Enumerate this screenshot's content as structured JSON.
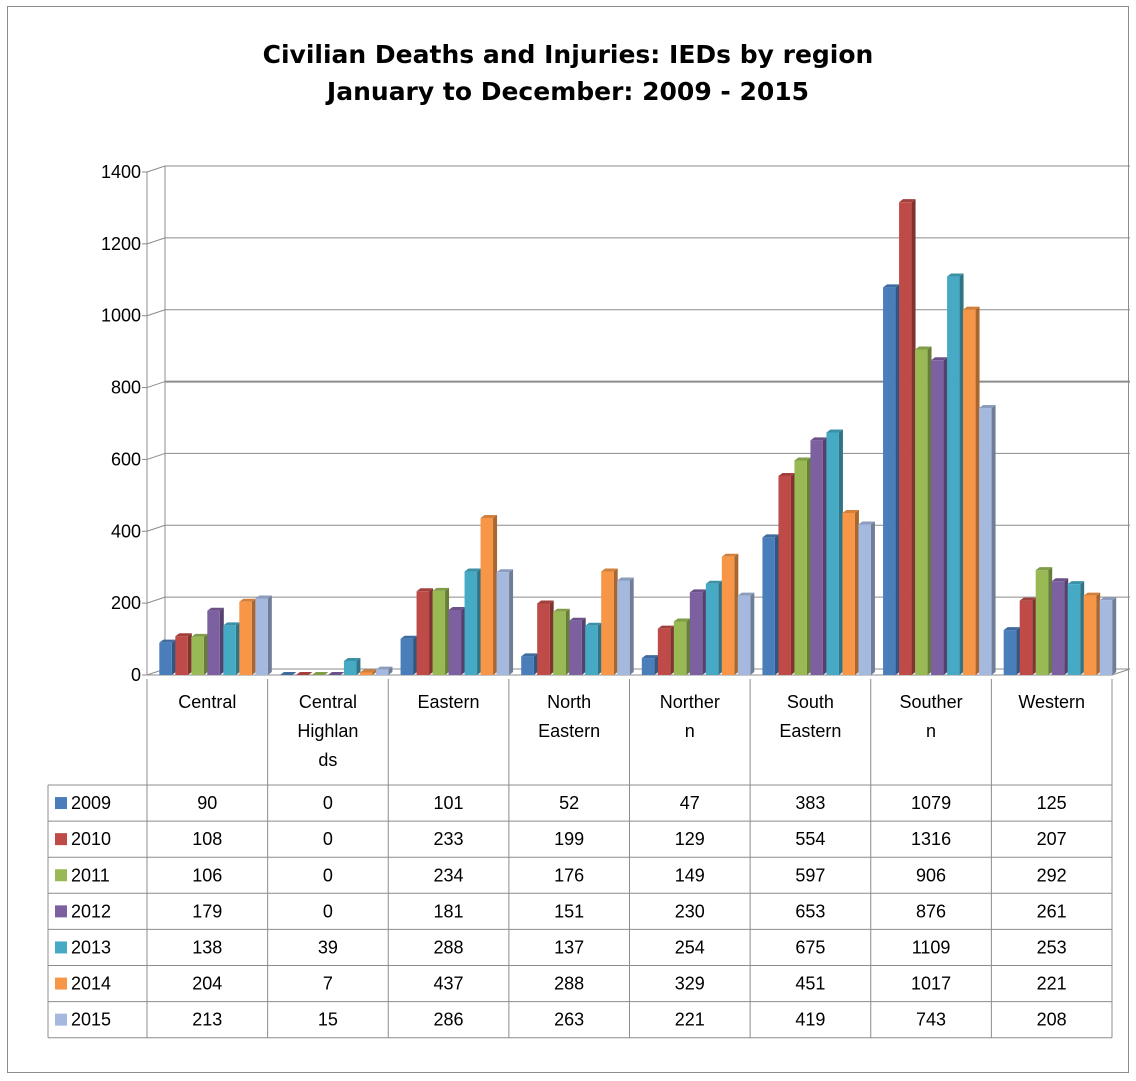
{
  "chart_data": {
    "type": "bar",
    "title": "Civilian Deaths and Injuries: IEDs by region",
    "subtitle": "January to December: 2009 - 2015",
    "xlabel": "",
    "ylabel": "",
    "ylim": [
      0,
      1400
    ],
    "yticks": [
      0,
      200,
      400,
      600,
      800,
      1000,
      1200,
      1400
    ],
    "grid": true,
    "legend": "data-table",
    "categories": [
      [
        "Central"
      ],
      [
        "Central",
        "Highlan",
        "ds"
      ],
      [
        "Eastern"
      ],
      [
        "North",
        "Eastern"
      ],
      [
        "Norther",
        "n"
      ],
      [
        "South",
        "Eastern"
      ],
      [
        "Souther",
        "n"
      ],
      [
        "Western"
      ]
    ],
    "series": [
      {
        "name": "2009",
        "color": "#4a7ebb",
        "values": [
          90,
          0,
          101,
          52,
          47,
          383,
          1079,
          125
        ]
      },
      {
        "name": "2010",
        "color": "#be4b48",
        "values": [
          108,
          0,
          233,
          199,
          129,
          554,
          1316,
          207
        ]
      },
      {
        "name": "2011",
        "color": "#98b954",
        "values": [
          106,
          0,
          234,
          176,
          149,
          597,
          906,
          292
        ]
      },
      {
        "name": "2012",
        "color": "#7d60a0",
        "values": [
          179,
          0,
          181,
          151,
          230,
          653,
          876,
          261
        ]
      },
      {
        "name": "2013",
        "color": "#46aac5",
        "values": [
          138,
          39,
          288,
          137,
          254,
          675,
          1109,
          253
        ]
      },
      {
        "name": "2014",
        "color": "#f79646",
        "values": [
          204,
          7,
          437,
          288,
          329,
          451,
          1017,
          221
        ]
      },
      {
        "name": "2015",
        "color": "#a5b8de",
        "values": [
          213,
          15,
          286,
          263,
          221,
          419,
          743,
          208
        ]
      }
    ]
  }
}
